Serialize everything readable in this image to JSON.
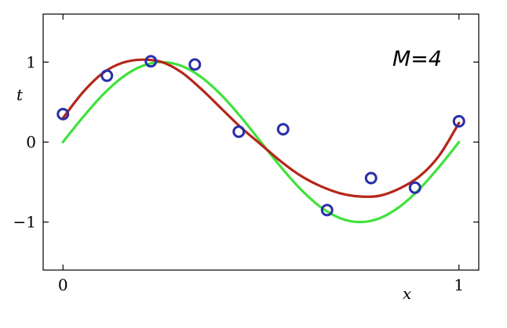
{
  "chart_data": {
    "type": "line",
    "title": "",
    "xlabel": "x",
    "ylabel": "t",
    "xlim": [
      -0.05,
      1.05
    ],
    "ylim": [
      -1.6,
      1.6
    ],
    "xticks": [
      {
        "value": 0,
        "label": "0"
      },
      {
        "value": 1,
        "label": "1"
      }
    ],
    "yticks": [
      {
        "value": -1,
        "label": "−1"
      },
      {
        "value": 0,
        "label": "0"
      },
      {
        "value": 1,
        "label": "1"
      }
    ],
    "annotation": "M=4",
    "grid": false,
    "colors": {
      "points": "#2a2fa8",
      "fit": "#b5261a",
      "true_curve": "#3fe23a"
    },
    "points": {
      "x": [
        0.0,
        0.111,
        0.222,
        0.333,
        0.444,
        0.556,
        0.667,
        0.778,
        0.889,
        1.0
      ],
      "y": [
        0.35,
        0.83,
        1.01,
        0.97,
        0.13,
        0.16,
        -0.85,
        -0.45,
        -0.57,
        0.26
      ]
    },
    "series": [
      {
        "x": [
          0,
          0.05,
          0.1,
          0.15,
          0.2,
          0.25,
          0.3,
          0.35,
          0.4,
          0.45,
          0.5,
          0.55,
          0.6,
          0.65,
          0.7,
          0.75,
          0.8,
          0.85,
          0.9,
          0.95,
          1.0
        ],
        "y": [
          0.0,
          0.309,
          0.588,
          0.809,
          0.951,
          1.0,
          0.951,
          0.809,
          0.588,
          0.309,
          0.0,
          -0.309,
          -0.588,
          -0.809,
          -0.951,
          -1.0,
          -0.951,
          -0.809,
          -0.588,
          -0.309,
          0.0
        ]
      },
      {
        "x": [
          0,
          0.05,
          0.1,
          0.15,
          0.2,
          0.25,
          0.3,
          0.35,
          0.4,
          0.45,
          0.5,
          0.55,
          0.6,
          0.65,
          0.7,
          0.75,
          0.8,
          0.85,
          0.9,
          0.95,
          1.0
        ],
        "y": [
          0.3,
          0.62,
          0.86,
          0.99,
          1.03,
          1.0,
          0.87,
          0.66,
          0.42,
          0.18,
          -0.03,
          -0.24,
          -0.42,
          -0.55,
          -0.64,
          -0.68,
          -0.67,
          -0.58,
          -0.43,
          -0.17,
          0.24
        ]
      }
    ]
  }
}
